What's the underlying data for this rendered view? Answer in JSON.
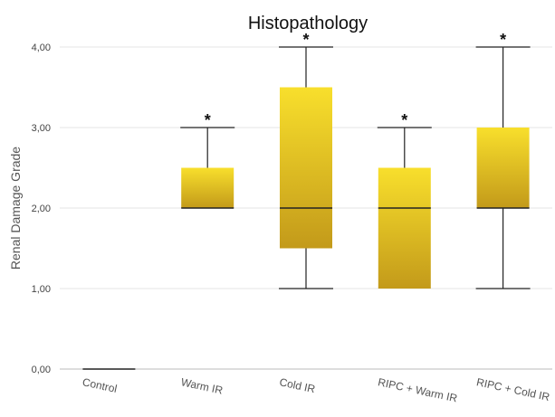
{
  "chart_data": {
    "type": "box",
    "title": "Histopathology",
    "xlabel": "",
    "ylabel": "Renal Damage Grade",
    "ylim": [
      0,
      4
    ],
    "yticks": [
      "0,00",
      "1,00",
      "2,00",
      "3,00",
      "4,00"
    ],
    "ytick_values": [
      0,
      1,
      2,
      3,
      4
    ],
    "grid": true,
    "categories": [
      "Control",
      "Warm IR",
      "Cold IR",
      "RIPC + Warm IR",
      "RIPC + Cold IR"
    ],
    "boxes": [
      {
        "category": "Control",
        "min": 0,
        "q1": 0,
        "median": 0,
        "q3": 0,
        "max": 0,
        "annotation": ""
      },
      {
        "category": "Warm IR",
        "min": 2,
        "q1": 2,
        "median": 2,
        "q3": 2.5,
        "max": 3,
        "annotation": "*"
      },
      {
        "category": "Cold IR",
        "min": 1,
        "q1": 1.5,
        "median": 2,
        "q3": 3.5,
        "max": 4,
        "annotation": "*"
      },
      {
        "category": "RIPC + Warm IR",
        "min": 1,
        "q1": 1,
        "median": 2,
        "q3": 2.5,
        "max": 3,
        "annotation": "*"
      },
      {
        "category": "RIPC + Cold IR",
        "min": 1,
        "q1": 2,
        "median": 2,
        "q3": 3,
        "max": 4,
        "annotation": "*"
      }
    ],
    "colors": {
      "box_top": "#f8df2c",
      "box_bottom": "#c39a1a",
      "line": "#222222",
      "grid": "#e4e4e4"
    }
  }
}
